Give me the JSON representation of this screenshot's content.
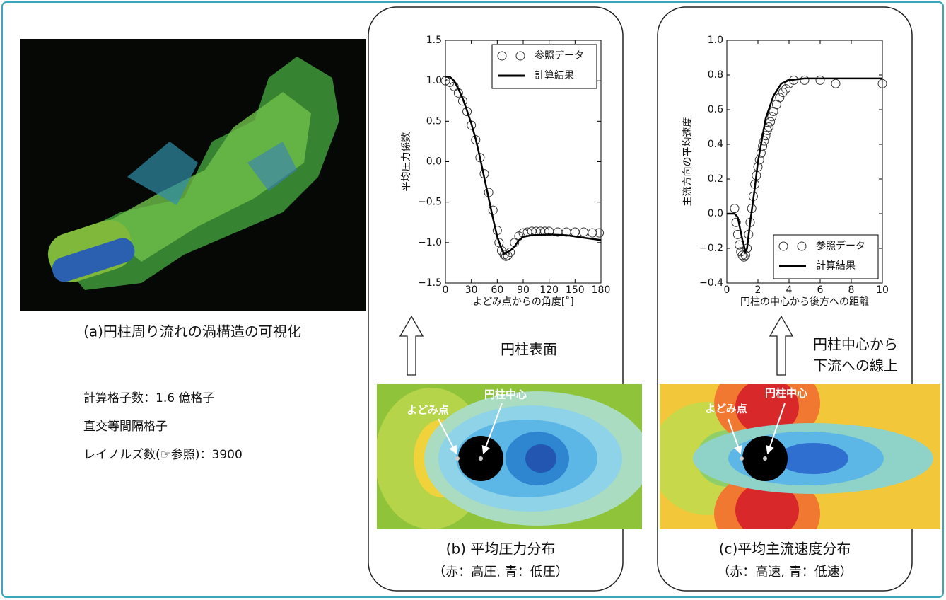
{
  "panel_a": {
    "caption": "(a)円柱周り流れの渦構造の可視化",
    "notes": [
      "計算格子数：1.6 億格子",
      "直交等間隔格子",
      "レイノルズ数(☞参照)：3900"
    ]
  },
  "panel_b": {
    "arrow_label": "円柱表面",
    "image_labels": [
      "よどみ点",
      "円柱中心"
    ],
    "caption": "(b) 平均圧力分布",
    "subcaption": "（赤：高圧, 青：低圧）"
  },
  "panel_c": {
    "arrow_label": [
      "円柱中心から",
      "下流への線上"
    ],
    "image_labels": [
      "よどみ点",
      "円柱中心"
    ],
    "caption": "(c)平均主流速度分布",
    "subcaption": "（赤：高速, 青：低速）"
  },
  "chart_data": [
    {
      "type": "line",
      "x_label": "よどみ点からの角度[˚]",
      "y_label": "平均圧力係数",
      "xlim": [
        0,
        180
      ],
      "xticks": [
        0,
        30,
        60,
        90,
        120,
        150,
        180
      ],
      "ylim": [
        -1.5,
        1.5
      ],
      "yticks": [
        {
          "value": -1.5,
          "label": "−1.5"
        },
        {
          "value": -1,
          "label": "−1.0"
        },
        {
          "value": -0.5,
          "label": "−0.5"
        },
        {
          "value": 0,
          "label": "0.0"
        },
        {
          "value": 0.5,
          "label": "0.5"
        },
        {
          "value": 1,
          "label": "1.0"
        },
        {
          "value": 1.5,
          "label": "1.5"
        }
      ],
      "legend": "upper right",
      "series": [
        {
          "name": "参照データ",
          "color": "#333333",
          "mode": "markers",
          "x": [
            0,
            5,
            10,
            15,
            20,
            25,
            30,
            35,
            40,
            45,
            50,
            55,
            60,
            62,
            65,
            68,
            70,
            72,
            75,
            80,
            85,
            90,
            95,
            100,
            105,
            110,
            115,
            120,
            130,
            140,
            150,
            160,
            170,
            178
          ],
          "values": [
            1.0,
            0.98,
            0.93,
            0.85,
            0.75,
            0.62,
            0.45,
            0.27,
            0.05,
            -0.15,
            -0.38,
            -0.6,
            -0.85,
            -1.0,
            -1.1,
            -1.15,
            -1.17,
            -1.16,
            -1.12,
            -1.0,
            -0.92,
            -0.88,
            -0.87,
            -0.86,
            -0.86,
            -0.86,
            -0.86,
            -0.86,
            -0.87,
            -0.87,
            -0.87,
            -0.87,
            -0.88,
            -0.88
          ]
        },
        {
          "name": "計算結果",
          "color": "#000000",
          "mode": "lines",
          "x": [
            0,
            5,
            10,
            15,
            20,
            25,
            30,
            35,
            40,
            45,
            50,
            55,
            60,
            65,
            68,
            70,
            75,
            80,
            85,
            90,
            100,
            120,
            140,
            160,
            180
          ],
          "values": [
            1.05,
            1.05,
            1.0,
            0.9,
            0.78,
            0.63,
            0.47,
            0.28,
            0.05,
            -0.2,
            -0.45,
            -0.7,
            -0.93,
            -1.08,
            -1.14,
            -1.13,
            -1.1,
            -1.05,
            -0.97,
            -0.93,
            -0.91,
            -0.9,
            -0.91,
            -0.94,
            -0.97
          ]
        }
      ]
    },
    {
      "type": "line",
      "x_label": "円柱の中心から後方への距離",
      "y_label": "主流方向の平均速度",
      "xlim": [
        0,
        10
      ],
      "xticks": [
        0,
        2,
        4,
        6,
        8,
        10
      ],
      "ylim": [
        -0.4,
        1.0
      ],
      "yticks": [
        {
          "value": -0.4,
          "label": "−0.4"
        },
        {
          "value": -0.2,
          "label": "−0.2"
        },
        {
          "value": 0,
          "label": "0.0"
        },
        0.2,
        0.4,
        0.6,
        0.8,
        {
          "value": 1,
          "label": "1.0"
        }
      ],
      "legend": "lower right",
      "series": [
        {
          "name": "参照データ",
          "color": "#333333",
          "mode": "markers",
          "x": [
            0.5,
            0.6,
            0.7,
            0.8,
            0.9,
            1.0,
            1.1,
            1.2,
            1.3,
            1.4,
            1.5,
            1.6,
            1.7,
            1.8,
            1.9,
            2.0,
            2.1,
            2.2,
            2.3,
            2.4,
            2.5,
            2.6,
            2.7,
            2.8,
            2.9,
            3.0,
            3.2,
            3.4,
            3.6,
            3.8,
            4.0,
            4.3,
            5,
            6,
            7,
            10
          ],
          "values": [
            0.03,
            -0.05,
            -0.12,
            -0.18,
            -0.22,
            -0.24,
            -0.25,
            -0.24,
            -0.2,
            -0.12,
            -0.05,
            0.03,
            0.1,
            0.17,
            0.22,
            0.27,
            0.31,
            0.35,
            0.39,
            0.42,
            0.45,
            0.48,
            0.5,
            0.53,
            0.56,
            0.59,
            0.63,
            0.67,
            0.7,
            0.72,
            0.75,
            0.77,
            0.77,
            0.77,
            0.75,
            0.75
          ]
        },
        {
          "name": "計算結果",
          "color": "#000000",
          "mode": "lines",
          "x": [
            0,
            0.5,
            0.7,
            1.0,
            1.2,
            1.3,
            1.5,
            1.8,
            2.0,
            2.5,
            3.0,
            3.5,
            4,
            5,
            7,
            10
          ],
          "values": [
            0,
            0,
            -0.02,
            -0.15,
            -0.22,
            -0.2,
            -0.05,
            0.15,
            0.3,
            0.55,
            0.68,
            0.75,
            0.77,
            0.78,
            0.78,
            0.78
          ]
        }
      ]
    }
  ]
}
